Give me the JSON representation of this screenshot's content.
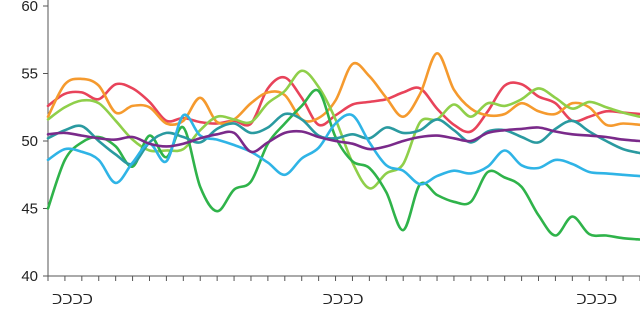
{
  "chart_data": {
    "type": "line",
    "title": "",
    "xlabel": "",
    "ylabel": "",
    "ylim": [
      40,
      60
    ],
    "yticks": [
      40,
      45,
      50,
      55,
      60
    ],
    "x_count": 36,
    "x_tick_labels": [
      {
        "index": 0,
        "label": "ᑐᑐᑐᑐ"
      },
      {
        "index": 16,
        "label": "ᑐᑐᑐᑐ"
      },
      {
        "index": 31,
        "label": "ᑐᑐᑐᑐ"
      }
    ],
    "grid": false,
    "legend": "none",
    "series": [
      {
        "color": "#e8435a",
        "values": [
          52.6,
          53.5,
          53.6,
          53.1,
          54.2,
          53.9,
          52.9,
          51.5,
          51.7,
          51.4,
          51.3,
          51.5,
          51.3,
          53.9,
          54.7,
          53.2,
          51.2,
          51.9,
          52.7,
          52.9,
          53.1,
          53.6,
          53.9,
          52.4,
          51.2,
          50.7,
          52.2,
          54.1,
          54.2,
          53.3,
          52.8,
          51.5,
          51.8,
          52.2,
          52.1,
          52.0
        ]
      },
      {
        "color": "#f59a2e",
        "values": [
          51.8,
          54.2,
          54.6,
          54.1,
          52.1,
          52.6,
          52.5,
          51.3,
          51.5,
          53.2,
          51.4,
          51.6,
          52.8,
          53.6,
          53.4,
          51.6,
          51.7,
          53.0,
          55.7,
          54.8,
          53.2,
          51.8,
          53.5,
          56.5,
          53.8,
          52.4,
          51.9,
          52.0,
          52.8,
          52.2,
          52.0,
          52.8,
          52.5,
          51.2,
          51.3,
          51.2
        ]
      },
      {
        "color": "#8fcf4a",
        "values": [
          51.6,
          52.5,
          53.0,
          52.8,
          51.5,
          50.1,
          49.3,
          49.3,
          49.4,
          50.8,
          51.8,
          51.6,
          51.4,
          52.8,
          53.7,
          55.2,
          54.0,
          51.6,
          48.4,
          46.5,
          47.6,
          48.3,
          51.4,
          51.6,
          52.7,
          51.8,
          52.8,
          52.6,
          53.1,
          53.9,
          53.2,
          52.4,
          52.9,
          52.5,
          52.1,
          51.8
        ]
      },
      {
        "color": "#2fb34a",
        "values": [
          45.0,
          48.6,
          49.9,
          50.3,
          49.6,
          48.1,
          50.4,
          48.8,
          51.0,
          46.6,
          44.8,
          46.4,
          47.0,
          49.8,
          51.3,
          52.6,
          53.7,
          50.3,
          48.5,
          48.0,
          46.2,
          43.4,
          46.8,
          46.0,
          45.5,
          45.5,
          47.7,
          47.3,
          46.6,
          44.5,
          43.0,
          44.4,
          43.1,
          43.0,
          42.8,
          42.7
        ]
      },
      {
        "color": "#2a9aa0",
        "values": [
          50.2,
          50.8,
          51.1,
          50.0,
          49.0,
          48.3,
          49.9,
          50.6,
          50.3,
          49.9,
          50.9,
          51.3,
          50.6,
          51.0,
          52.0,
          51.6,
          50.4,
          50.2,
          50.5,
          50.2,
          51.0,
          50.6,
          50.8,
          51.6,
          50.8,
          49.9,
          50.7,
          50.8,
          50.3,
          49.9,
          50.9,
          51.5,
          50.7,
          50.0,
          49.4,
          49.1
        ]
      },
      {
        "color": "#2fb4e6",
        "values": [
          48.6,
          49.4,
          49.2,
          48.6,
          46.9,
          48.4,
          49.8,
          48.5,
          51.9,
          50.4,
          50.1,
          49.7,
          49.2,
          48.4,
          47.5,
          48.7,
          49.5,
          51.3,
          51.9,
          49.9,
          48.2,
          47.8,
          46.8,
          47.4,
          47.8,
          47.6,
          48.1,
          49.3,
          48.2,
          48.0,
          48.6,
          48.3,
          47.7,
          47.6,
          47.5,
          47.4
        ]
      },
      {
        "color": "#7a2a8a",
        "values": [
          50.5,
          50.6,
          50.4,
          50.2,
          50.1,
          50.3,
          49.8,
          49.6,
          49.8,
          50.2,
          50.5,
          50.6,
          49.2,
          49.9,
          50.6,
          50.7,
          50.3,
          50.0,
          49.8,
          49.4,
          49.6,
          50.0,
          50.3,
          50.4,
          50.2,
          50.0,
          50.6,
          50.8,
          50.9,
          51.0,
          50.7,
          50.5,
          50.4,
          50.3,
          50.1,
          50.0
        ]
      }
    ]
  }
}
